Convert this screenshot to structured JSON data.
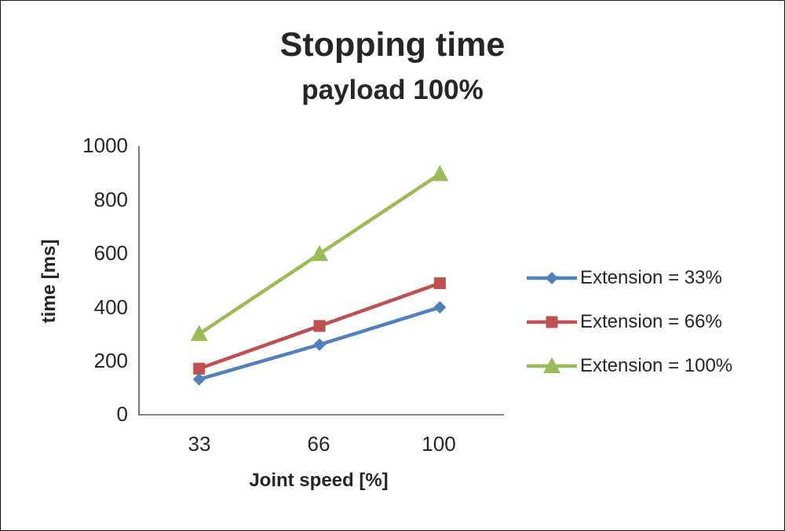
{
  "chart_data": {
    "type": "line",
    "title": "Stopping time",
    "subtitle": "payload 100%",
    "xlabel": "Joint speed [%]",
    "ylabel": "time [ms]",
    "categories": [
      "33",
      "66",
      "100"
    ],
    "yticks": [
      "1000",
      "800",
      "600",
      "400",
      "200",
      "0"
    ],
    "ylim": [
      0,
      1000
    ],
    "grid": false,
    "legend_position": "right",
    "series": [
      {
        "name": "Extension = 33%",
        "color": "#4F81BD",
        "marker": "diamond",
        "values": [
          130,
          260,
          400
        ]
      },
      {
        "name": "Extension = 66%",
        "color": "#C0504D",
        "marker": "square",
        "values": [
          170,
          330,
          490
        ]
      },
      {
        "name": "Extension = 100%",
        "color": "#9BBB59",
        "marker": "triangle",
        "values": [
          300,
          600,
          900
        ]
      }
    ]
  }
}
